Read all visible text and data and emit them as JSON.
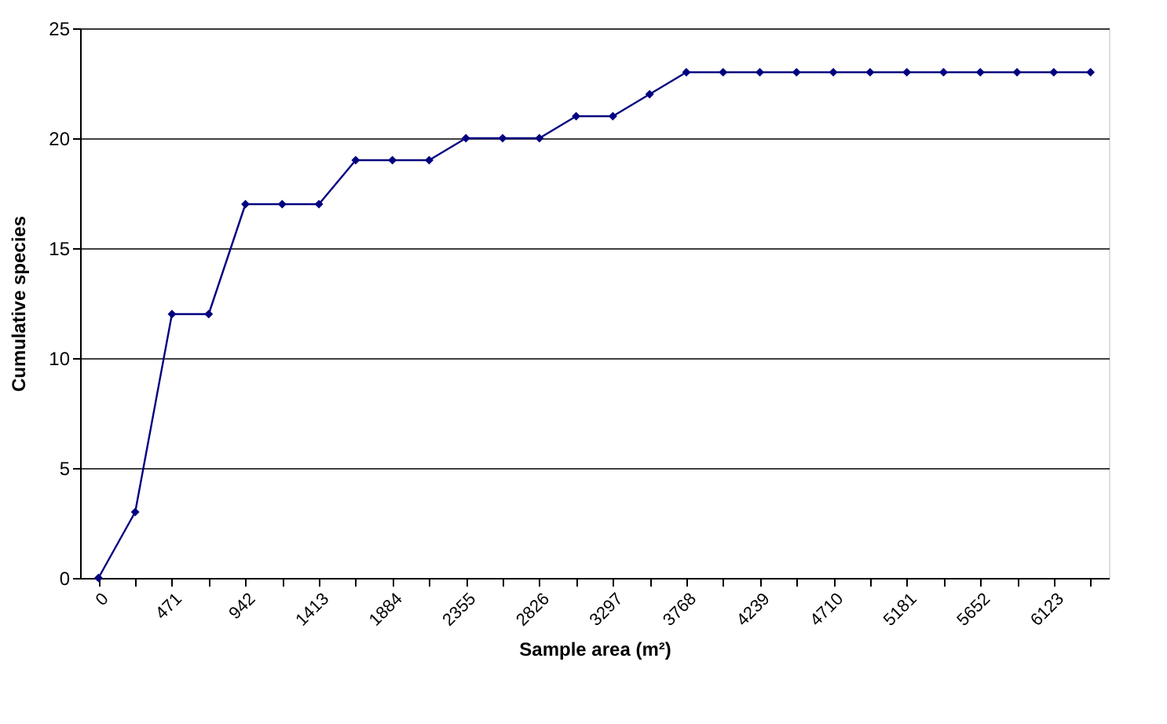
{
  "chart_data": {
    "type": "line",
    "xlabel": "Sample area (m²)",
    "ylabel": "Cumulative species",
    "categories": [
      "0",
      null,
      "471",
      null,
      "942",
      null,
      "1413",
      null,
      "1884",
      null,
      "2355",
      null,
      "2826",
      null,
      "3297",
      null,
      "3768",
      null,
      "4239",
      null,
      "4710",
      null,
      "5181",
      null,
      "5652",
      null,
      "6123",
      null
    ],
    "series": [
      {
        "color": "#000080",
        "values": [
          0,
          3,
          12,
          12,
          17,
          17,
          17,
          19,
          19,
          19,
          20,
          20,
          20,
          21,
          21,
          22,
          23,
          23,
          23,
          23,
          23,
          23,
          23,
          23,
          23,
          23,
          23,
          23
        ]
      }
    ],
    "ylim": [
      0,
      25
    ],
    "yticks": [
      0,
      5,
      10,
      15,
      20,
      25
    ],
    "grid": "y",
    "marker": "diamond",
    "line_style": "solid"
  }
}
